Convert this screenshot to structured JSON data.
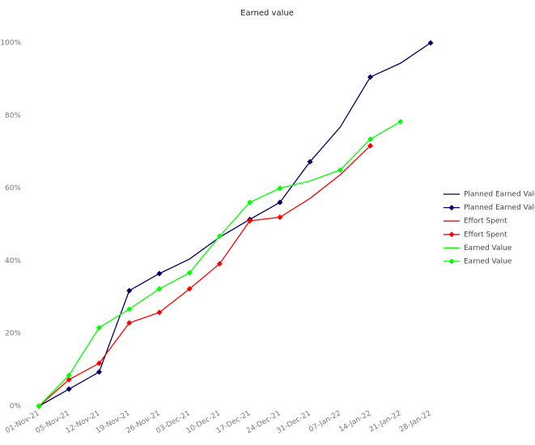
{
  "chart_data": {
    "type": "line",
    "title": "Earned value",
    "categories": [
      "01-Nov-21",
      "05-Nov-21",
      "12-Nov-21",
      "19-Nov-21",
      "26-Nov-21",
      "03-Dec-21",
      "10-Dec-21",
      "17-Dec-21",
      "24-Dec-21",
      "31-Dec-21",
      "07-Jan-22",
      "14-Jan-22",
      "21-Jan-22",
      "28-Jan-22"
    ],
    "ylim": [
      0,
      100
    ],
    "yticks": [
      {
        "value": 0,
        "label": "0%"
      },
      {
        "value": 20,
        "label": "20%"
      },
      {
        "value": 40,
        "label": "40%"
      },
      {
        "value": 60,
        "label": "60%"
      },
      {
        "value": 80,
        "label": "80%"
      },
      {
        "value": 100,
        "label": "100%"
      }
    ],
    "grid": false,
    "legend": "right",
    "series": [
      {
        "name": "Planned Earned Value",
        "color": "#000066",
        "marker": false,
        "values": [
          0,
          4.7,
          9.4,
          31.8,
          36.5,
          40.5,
          46.5,
          51.4,
          56.1,
          67.3,
          76.8,
          90.6,
          94.4,
          100
        ]
      },
      {
        "name": "Planned Earned Value",
        "color": "#000066",
        "marker": true,
        "values": [
          0,
          4.7,
          9.4,
          31.8,
          36.5,
          null,
          null,
          51.4,
          56.1,
          67.3,
          null,
          90.6,
          null,
          100
        ]
      },
      {
        "name": "Effort Spent",
        "color": "#ff0000",
        "marker": false,
        "values": [
          0,
          7.3,
          11.8,
          22.9,
          25.8,
          32.3,
          39.2,
          51,
          52,
          57.2,
          63.7,
          71.7,
          null,
          null
        ]
      },
      {
        "name": "Effort Spent",
        "color": "#ff0000",
        "marker": true,
        "values": [
          0,
          7.3,
          11.8,
          22.9,
          25.8,
          32.3,
          39.2,
          51,
          52,
          null,
          null,
          71.7,
          null,
          null
        ]
      },
      {
        "name": "Earned Value",
        "color": "#00ff00",
        "marker": false,
        "values": [
          0,
          8.5,
          21.6,
          26.7,
          32.3,
          36.7,
          46.8,
          56.1,
          60,
          62,
          65,
          73.5,
          78.3,
          null
        ]
      },
      {
        "name": "Earned Value",
        "color": "#00ff00",
        "marker": true,
        "values": [
          0,
          8.5,
          21.6,
          26.7,
          32.3,
          36.7,
          46.8,
          56.1,
          60,
          null,
          65,
          73.5,
          78.3,
          null
        ]
      }
    ]
  }
}
